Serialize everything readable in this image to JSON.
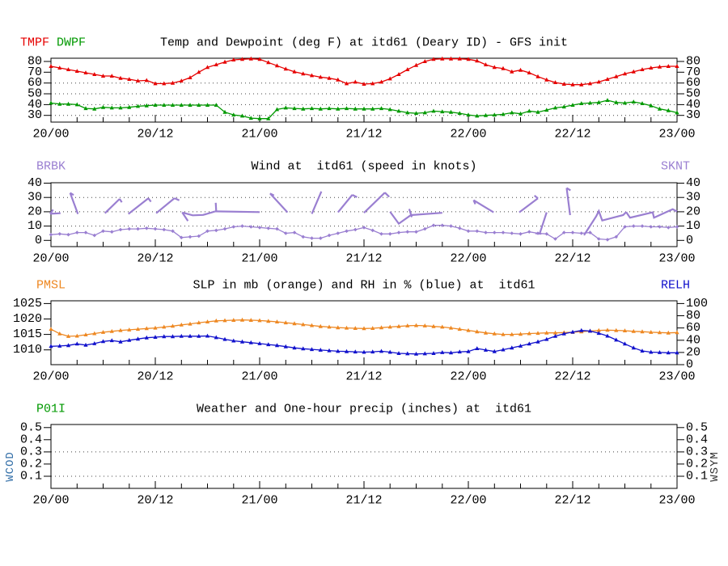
{
  "station": "itd61",
  "colors": {
    "tmpf": "#e60000",
    "dwpf": "#009900",
    "wind": "#9a7fd1",
    "pmsl": "#ee8822",
    "relh": "#1111cc",
    "wcod_label": "#336fa8",
    "wsym_label": "#333333",
    "frame": "#000000",
    "grid_dots": "#444444"
  },
  "side_labels": {
    "wcod": "WCOD",
    "wsym": "WSYM"
  },
  "chart_data": {
    "type": "line",
    "x": {
      "start_hour": 0,
      "end_hour": 72,
      "step_hours": 1,
      "major_tick_hours": [
        0,
        12,
        24,
        36,
        48,
        60,
        72
      ],
      "major_tick_labels": [
        "20/00",
        "20/12",
        "21/00",
        "21/12",
        "22/00",
        "22/12",
        "23/00"
      ],
      "minor_tick_step_hours": 3
    },
    "panels": [
      {
        "id": "temp_dewpoint",
        "title": "Temp and Dewpoint (deg F) at itd61 (Deary ID) - GFS init",
        "legend_left": [
          {
            "label": "TMPF",
            "color": "#e60000"
          },
          {
            "label": "DWPF",
            "color": "#009900"
          }
        ],
        "legend_right": [],
        "y_left": {
          "lim": [
            23.8,
            83.0
          ],
          "ticks": [
            80,
            70,
            60,
            50,
            40,
            30
          ],
          "labels": [
            "80",
            "70",
            "60",
            "50",
            "40",
            "30"
          ]
        },
        "y_right": {
          "lim": [
            23.8,
            83.0
          ],
          "ticks": [
            80,
            70,
            60,
            50,
            40,
            30
          ],
          "labels": [
            "80",
            "70",
            "60",
            "50",
            "40",
            "30"
          ]
        },
        "grid_values": [
          60,
          50,
          40,
          30
        ],
        "series": [
          {
            "name": "TMPF",
            "color": "#e60000",
            "marker": "triangle",
            "axis": "left",
            "values": [
              75.5,
              74,
              72.5,
              71,
              69.5,
              68,
              66.5,
              66.5,
              64.5,
              63.5,
              62,
              62.5,
              59.5,
              59.5,
              60,
              62,
              65,
              70,
              74.5,
              77,
              79.5,
              81.5,
              82,
              82.5,
              82,
              79,
              76,
              73,
              70.5,
              68.5,
              67,
              65.5,
              64.5,
              63,
              59.5,
              61,
              59,
              59.5,
              61,
              64,
              68,
              72.5,
              76.5,
              80,
              82,
              82.5,
              82.5,
              82.5,
              82,
              80.5,
              77,
              74.5,
              73.5,
              70.5,
              72,
              69.5,
              66,
              63,
              60.5,
              59,
              58.5,
              58.5,
              59.5,
              61,
              63.5,
              66,
              68.5,
              70.5,
              72.5,
              74,
              75,
              75.5,
              75.5
            ]
          },
          {
            "name": "DWPF",
            "color": "#009900",
            "marker": "triangle",
            "axis": "left",
            "values": [
              41.5,
              40.5,
              40.5,
              40,
              36.5,
              36,
              37.5,
              37,
              37,
              37.5,
              38.5,
              39,
              39.5,
              39.5,
              39.5,
              39.5,
              39.5,
              39.5,
              39.5,
              39.5,
              33,
              30.5,
              29.5,
              27.5,
              27,
              27,
              35.5,
              37,
              36.5,
              36,
              36.5,
              36,
              36.5,
              36,
              36.5,
              36,
              36,
              36,
              36.5,
              35.5,
              34,
              32.5,
              32,
              32.5,
              34,
              33.5,
              33,
              32,
              30.5,
              29.5,
              30,
              30.5,
              31,
              32.5,
              31.5,
              34,
              33,
              35,
              37,
              38,
              39.5,
              41,
              41.5,
              42,
              44,
              42,
              41.5,
              42.5,
              41,
              39,
              36,
              34.5,
              32.5
            ]
          }
        ],
        "barbs": []
      },
      {
        "id": "wind",
        "title": "Wind at  itd61 (speed in knots)",
        "legend_left": [
          {
            "label": "BRBK",
            "color": "#9a7fd1"
          }
        ],
        "legend_right": [
          {
            "label": "SKNT",
            "color": "#9a7fd1"
          }
        ],
        "y_left": {
          "lim": [
            -4.35,
            40.3
          ],
          "ticks": [
            40,
            30,
            20,
            10,
            0
          ],
          "labels": [
            "40",
            "30",
            "20",
            "10",
            "0"
          ]
        },
        "y_right": {
          "lim": [
            -4.35,
            40.3
          ],
          "ticks": [
            40,
            30,
            20,
            10,
            0
          ],
          "labels": [
            "40",
            "30",
            "20",
            "10",
            "0"
          ]
        },
        "grid_values": [
          30,
          20,
          10
        ],
        "series": [
          {
            "name": "SKNT",
            "color": "#9a7fd1",
            "marker": "diamond",
            "axis": "left",
            "values": [
              4,
              4.5,
              4,
              5.5,
              5.5,
              3.5,
              6.5,
              6,
              7.5,
              8,
              8,
              8.5,
              8,
              7.5,
              6.5,
              2,
              2.5,
              3,
              6.5,
              7,
              8,
              9.5,
              10,
              9.5,
              9,
              8.5,
              8,
              5,
              5.5,
              2.5,
              1.5,
              1.5,
              3.5,
              5,
              6.5,
              7.5,
              9,
              7,
              4.5,
              4.5,
              5.5,
              6,
              6,
              8,
              10.5,
              10.5,
              10,
              8.5,
              6.5,
              6.5,
              5.5,
              5.5,
              5.5,
              5,
              4.5,
              6,
              5,
              4.5,
              1,
              5.5,
              5.5,
              5,
              5.5,
              1,
              0.5,
              2.5,
              9.5,
              10,
              10,
              9.5,
              9.5,
              9,
              9.5
            ]
          }
        ],
        "barbs": [
          [
            [
              -0.1,
              18.6
            ],
            [
              1.1,
              19.0
            ]
          ],
          [
            [
              -0.1,
              18.6
            ],
            [
              0.25,
              21.5
            ]
          ],
          [
            [
              3.1,
              18.5
            ],
            [
              2.2,
              33.2
            ]
          ],
          [
            [
              2.2,
              33.2
            ],
            [
              2.6,
              31.7
            ]
          ],
          [
            [
              6.2,
              19.0
            ],
            [
              7.9,
              29.0
            ]
          ],
          [
            [
              7.9,
              29.0
            ],
            [
              8.15,
              26.6
            ]
          ],
          [
            [
              8.9,
              18.5
            ],
            [
              11.2,
              29.4
            ]
          ],
          [
            [
              11.2,
              29.4
            ],
            [
              11.5,
              27.0
            ]
          ],
          [
            [
              12.1,
              19.0
            ],
            [
              14.2,
              29.5
            ]
          ],
          [
            [
              14.2,
              29.5
            ],
            [
              14.75,
              28.0
            ]
          ],
          [
            [
              15.1,
              19.5
            ],
            [
              16.3,
              17.5
            ],
            [
              17.5,
              17.8
            ],
            [
              18.85,
              20.2
            ]
          ],
          [
            [
              15.1,
              19.5
            ],
            [
              15.75,
              13.6
            ]
          ],
          [
            [
              18.85,
              20.3
            ],
            [
              24.0,
              19.8
            ]
          ],
          [
            [
              18.95,
              26.3
            ],
            [
              19.0,
              20.3
            ]
          ],
          [
            [
              27.2,
              19.6
            ],
            [
              25.2,
              32.8
            ]
          ],
          [
            [
              25.2,
              32.8
            ],
            [
              25.65,
              31.4
            ]
          ],
          [
            [
              30.0,
              18.6
            ],
            [
              31.1,
              34.2
            ]
          ],
          [
            [
              33.0,
              19.6
            ],
            [
              34.65,
              31.8
            ]
          ],
          [
            [
              34.65,
              31.8
            ],
            [
              35.2,
              30.2
            ]
          ],
          [
            [
              36.0,
              19.3
            ],
            [
              38.4,
              33.4
            ]
          ],
          [
            [
              38.4,
              33.4
            ],
            [
              38.9,
              30.4
            ]
          ],
          [
            [
              39.0,
              20.0
            ],
            [
              40.0,
              11.7
            ],
            [
              41.4,
              17.7
            ],
            [
              45.0,
              19.3
            ]
          ],
          [
            [
              41.2,
              22.0
            ],
            [
              41.5,
              16.3
            ]
          ],
          [
            [
              48.6,
              28.1
            ],
            [
              50.9,
              19.6
            ]
          ],
          [
            [
              48.6,
              28.1
            ],
            [
              48.8,
              25.3
            ]
          ],
          [
            [
              53.85,
              19.6
            ],
            [
              56.0,
              29.4
            ]
          ],
          [
            [
              56.0,
              29.4
            ],
            [
              55.6,
              31.3
            ]
          ],
          [
            [
              56.2,
              4.5
            ],
            [
              57.0,
              19.6
            ]
          ],
          [
            [
              55.7,
              5.0
            ],
            [
              56.4,
              4.6
            ]
          ],
          [
            [
              59.7,
              17.7
            ],
            [
              59.3,
              36.6
            ]
          ],
          [
            [
              59.3,
              36.6
            ],
            [
              59.75,
              35.0
            ]
          ],
          [
            [
              61.3,
              3.6
            ],
            [
              62.7,
              16.8
            ],
            [
              63.0,
              20.5
            ],
            [
              63.4,
              13.9
            ],
            [
              65.8,
              17.7
            ],
            [
              66.15,
              19.8
            ]
          ],
          [
            [
              66.15,
              19.8
            ],
            [
              66.6,
              15.9
            ],
            [
              69.2,
              19.6
            ],
            [
              69.35,
              15.9
            ],
            [
              71.5,
              21.8
            ],
            [
              72.0,
              20.2
            ]
          ]
        ]
      },
      {
        "id": "slp_rh",
        "title": "SLP in mb (orange) and RH in % (blue) at  itd61",
        "legend_left": [
          {
            "label": "PMSL",
            "color": "#ee8822"
          }
        ],
        "legend_right": [
          {
            "label": "RELH",
            "color": "#1111cc"
          }
        ],
        "y_left": {
          "lim": [
            1005.2,
            1025.9
          ],
          "ticks": [
            1025,
            1020,
            1015,
            1010
          ],
          "labels": [
            "1025",
            "1020",
            "1015",
            "1010"
          ]
        },
        "y_right": {
          "lim": [
            0,
            104.5
          ],
          "ticks": [
            100,
            80,
            60,
            40,
            20,
            0
          ],
          "labels": [
            "100",
            "80",
            "60",
            "40",
            "20",
            "0"
          ]
        },
        "grid_values": [],
        "series": [
          {
            "name": "PMSL",
            "color": "#ee8822",
            "marker": "triangle",
            "axis": "left",
            "values": [
              1016.7,
              1015.2,
              1014.4,
              1014.5,
              1014.9,
              1015.3,
              1015.7,
              1016,
              1016.3,
              1016.5,
              1016.7,
              1016.9,
              1017.1,
              1017.4,
              1017.7,
              1018.1,
              1018.4,
              1018.8,
              1019.1,
              1019.4,
              1019.5,
              1019.6,
              1019.7,
              1019.6,
              1019.5,
              1019.3,
              1019.1,
              1018.8,
              1018.5,
              1018.2,
              1017.9,
              1017.6,
              1017.4,
              1017.2,
              1017.1,
              1017,
              1016.9,
              1017,
              1017.2,
              1017.4,
              1017.6,
              1017.8,
              1017.9,
              1017.8,
              1017.6,
              1017.4,
              1017.1,
              1016.7,
              1016.3,
              1015.9,
              1015.5,
              1015.2,
              1015,
              1015,
              1015.1,
              1015.3,
              1015.4,
              1015.5,
              1015.5,
              1015.6,
              1015.7,
              1015.9,
              1016.1,
              1016.3,
              1016.4,
              1016.3,
              1016.2,
              1016,
              1015.9,
              1015.7,
              1015.6,
              1015.5,
              1015.6
            ]
          },
          {
            "name": "RELH",
            "color": "#1111cc",
            "marker": "triangle",
            "axis": "right",
            "values": [
              30,
              30.5,
              31.5,
              34,
              32,
              34.5,
              38,
              39.5,
              37.5,
              40,
              42,
              44,
              45,
              46,
              46,
              46.5,
              46.5,
              46.5,
              47,
              44.5,
              41.5,
              39,
              37.5,
              36,
              34.5,
              33,
              31.5,
              29.5,
              27.5,
              26,
              25,
              24,
              23,
              22,
              21.5,
              21,
              20.5,
              21,
              22,
              20.5,
              18.5,
              18,
              17.5,
              18,
              18.5,
              20,
              19.5,
              21,
              21.5,
              26.5,
              24,
              21.5,
              24.5,
              27.5,
              30.5,
              34,
              37.5,
              41.5,
              46.5,
              50.5,
              53.5,
              56,
              55,
              51.5,
              47,
              40.5,
              34,
              27.5,
              22.5,
              20.5,
              20,
              19.5,
              19.5
            ]
          }
        ],
        "barbs": []
      },
      {
        "id": "precip",
        "title": "Weather and One-hour precip (inches) at  itd61",
        "legend_left": [
          {
            "label": "P01I",
            "color": "#009900"
          }
        ],
        "legend_right": [],
        "y_left": {
          "lim": [
            0,
            0.525
          ],
          "ticks": [
            0.5,
            0.4,
            0.3,
            0.2,
            0.1
          ],
          "labels": [
            "0.5",
            "0.4",
            "0.3",
            "0.2",
            "0.1"
          ]
        },
        "y_right": {
          "lim": [
            0,
            0.525
          ],
          "ticks": [
            0.5,
            0.4,
            0.3,
            0.2,
            0.1
          ],
          "labels": [
            "0.5",
            "0.4",
            "0.3",
            "0.2",
            "0.1"
          ]
        },
        "grid_values": [
          0.3,
          0.1
        ],
        "series": [],
        "barbs": []
      }
    ]
  }
}
